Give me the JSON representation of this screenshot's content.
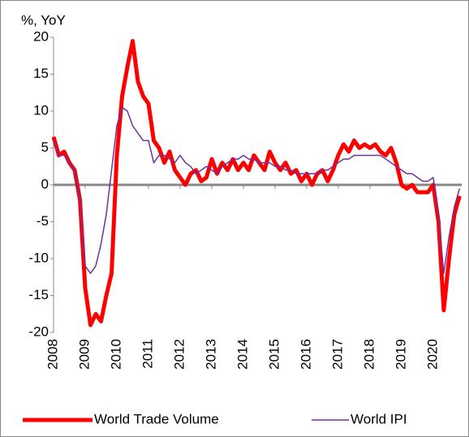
{
  "chart_data": {
    "type": "line",
    "ylabel": "%, YoY",
    "xlim": [
      2008,
      2020.9
    ],
    "xticks": [
      2008,
      2009,
      2010,
      2011,
      2012,
      2013,
      2014,
      2015,
      2016,
      2017,
      2018,
      2019,
      2020
    ],
    "ylim": [
      -20,
      20
    ],
    "yticks": [
      -20,
      -15,
      -10,
      -5,
      0,
      5,
      10,
      15,
      20
    ],
    "legend": "bottom",
    "x": [
      2008,
      2008.167,
      2008.333,
      2008.5,
      2008.667,
      2008.833,
      2009,
      2009.167,
      2009.333,
      2009.5,
      2009.667,
      2009.833,
      2010,
      2010.167,
      2010.333,
      2010.5,
      2010.667,
      2010.833,
      2011,
      2011.167,
      2011.333,
      2011.5,
      2011.667,
      2011.833,
      2012,
      2012.167,
      2012.333,
      2012.5,
      2012.667,
      2012.833,
      2013,
      2013.167,
      2013.333,
      2013.5,
      2013.667,
      2013.833,
      2014,
      2014.167,
      2014.333,
      2014.5,
      2014.667,
      2014.833,
      2015,
      2015.167,
      2015.333,
      2015.5,
      2015.667,
      2015.833,
      2016,
      2016.167,
      2016.333,
      2016.5,
      2016.667,
      2016.833,
      2017,
      2017.167,
      2017.333,
      2017.5,
      2017.667,
      2017.833,
      2018,
      2018.167,
      2018.333,
      2018.5,
      2018.667,
      2018.833,
      2019,
      2019.167,
      2019.333,
      2019.5,
      2019.667,
      2019.833,
      2020,
      2020.167,
      2020.333,
      2020.5,
      2020.667,
      2020.833
    ],
    "series": [
      {
        "name": "World Trade Volume",
        "color": "#ff0000",
        "width": 5,
        "values": [
          6.5,
          4,
          4.5,
          3,
          2,
          -2,
          -14,
          -19,
          -17.5,
          -18.5,
          -15,
          -12,
          4,
          12,
          16,
          19.5,
          14,
          12,
          11,
          6,
          5,
          3,
          4.5,
          2,
          1,
          0,
          1.5,
          2,
          0.5,
          1,
          3.5,
          1.5,
          3,
          2,
          3.5,
          2,
          3,
          2,
          4,
          3,
          2,
          4.5,
          3,
          2,
          3,
          1.5,
          2,
          0.5,
          1.5,
          0,
          1.5,
          2,
          0.5,
          2,
          4,
          5.5,
          4.5,
          6,
          5,
          5.5,
          5,
          5.5,
          4.5,
          4,
          5,
          3,
          0,
          -0.5,
          0,
          -1,
          -1,
          -1,
          0,
          -5,
          -17,
          -10,
          -4,
          -1.5
        ]
      },
      {
        "name": "World IPI",
        "color": "#7030a0",
        "width": 1.5,
        "values": [
          6,
          4,
          4,
          3,
          2,
          -2,
          -11,
          -12,
          -11,
          -8,
          -4,
          2,
          8,
          10.5,
          10,
          8,
          7,
          6,
          6,
          3,
          4,
          4,
          3.5,
          3,
          4,
          3,
          2.5,
          1.5,
          2,
          2.5,
          2,
          1.5,
          2.5,
          3,
          3.5,
          3.5,
          4,
          3.5,
          3.5,
          3,
          3,
          3,
          2.5,
          2.5,
          2,
          2,
          1.5,
          1.5,
          1.5,
          1.5,
          1.5,
          2,
          2,
          2.5,
          3,
          3.5,
          3.5,
          4,
          4,
          4,
          4,
          4,
          4,
          3.5,
          3,
          2.5,
          2,
          1.5,
          1.5,
          1,
          0.5,
          0.5,
          1,
          -4,
          -12,
          -7,
          -3,
          -0.5
        ]
      }
    ]
  }
}
